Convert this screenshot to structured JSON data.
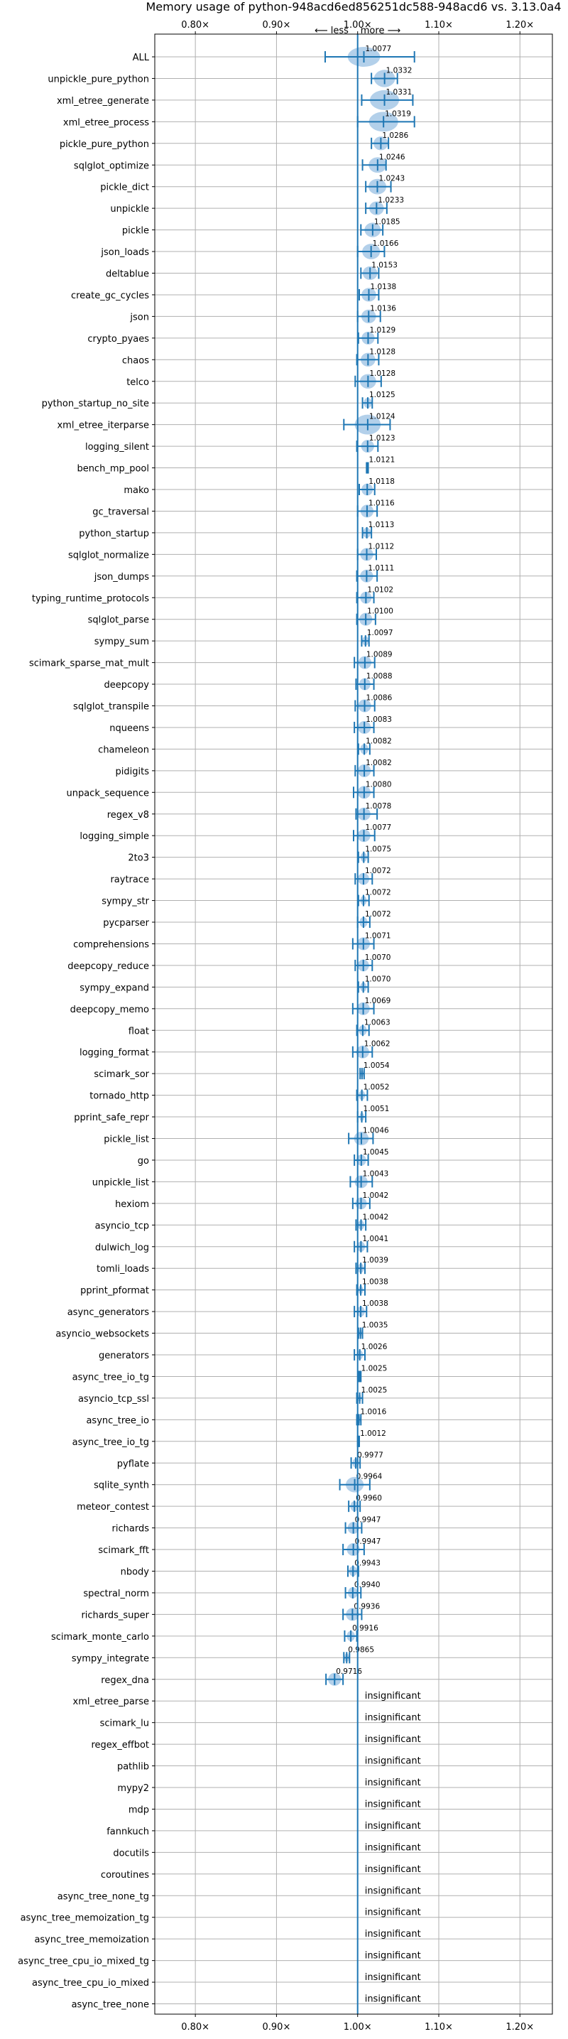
{
  "chart_data": {
    "type": "scatter",
    "title": "Memory usage of python-948acd6ed856251dc588-948acd6 vs. 3.13.0a4",
    "xlim": [
      0.75,
      1.24
    ],
    "x_ticks": [
      0.8,
      0.9,
      1.0,
      1.1,
      1.2
    ],
    "x_tick_labels": [
      "0.80×",
      "0.90×",
      "1.00×",
      "1.10×",
      "1.20×"
    ],
    "direction_labels": {
      "left": "⟵ less",
      "right": "more ⟶"
    },
    "grid": true,
    "colors": {
      "line": "#1f77b4",
      "violin": "#a6c8e6",
      "grid": "#b0b0b0"
    },
    "insignificant_label": "insignificant",
    "benchmarks": [
      {
        "name": "ALL",
        "mean": 1.0077,
        "lo": 0.96,
        "hi": 1.07,
        "spread": 0.02
      },
      {
        "name": "unpickle_pure_python",
        "mean": 1.0332,
        "lo": 1.017,
        "hi": 1.049,
        "spread": 0.013
      },
      {
        "name": "xml_etree_generate",
        "mean": 1.0331,
        "lo": 1.005,
        "hi": 1.068,
        "spread": 0.018
      },
      {
        "name": "xml_etree_process",
        "mean": 1.0319,
        "lo": 1.0,
        "hi": 1.07,
        "spread": 0.018
      },
      {
        "name": "pickle_pure_python",
        "mean": 1.0286,
        "lo": 1.017,
        "hi": 1.038,
        "spread": 0.009
      },
      {
        "name": "sqlglot_optimize",
        "mean": 1.0246,
        "lo": 1.006,
        "hi": 1.035,
        "spread": 0.011
      },
      {
        "name": "pickle_dict",
        "mean": 1.0243,
        "lo": 1.01,
        "hi": 1.041,
        "spread": 0.011
      },
      {
        "name": "unpickle",
        "mean": 1.0233,
        "lo": 1.01,
        "hi": 1.036,
        "spread": 0.009
      },
      {
        "name": "pickle",
        "mean": 1.0185,
        "lo": 1.004,
        "hi": 1.031,
        "spread": 0.01
      },
      {
        "name": "json_loads",
        "mean": 1.0166,
        "lo": 1.0,
        "hi": 1.033,
        "spread": 0.011
      },
      {
        "name": "deltablue",
        "mean": 1.0153,
        "lo": 1.004,
        "hi": 1.026,
        "spread": 0.009
      },
      {
        "name": "create_gc_cycles",
        "mean": 1.0138,
        "lo": 1.002,
        "hi": 1.026,
        "spread": 0.009
      },
      {
        "name": "json",
        "mean": 1.0136,
        "lo": 1.0,
        "hi": 1.028,
        "spread": 0.009
      },
      {
        "name": "crypto_pyaes",
        "mean": 1.0129,
        "lo": 1.001,
        "hi": 1.025,
        "spread": 0.008
      },
      {
        "name": "chaos",
        "mean": 1.0128,
        "lo": 0.999,
        "hi": 1.026,
        "spread": 0.009
      },
      {
        "name": "telco",
        "mean": 1.0128,
        "lo": 0.997,
        "hi": 1.029,
        "spread": 0.01
      },
      {
        "name": "python_startup_no_site",
        "mean": 1.0125,
        "lo": 1.006,
        "hi": 1.018,
        "spread": 0.005
      },
      {
        "name": "xml_etree_iterparse",
        "mean": 1.0124,
        "lo": 0.983,
        "hi": 1.04,
        "spread": 0.016
      },
      {
        "name": "logging_silent",
        "mean": 1.0123,
        "lo": 0.999,
        "hi": 1.025,
        "spread": 0.008
      },
      {
        "name": "bench_mp_pool",
        "mean": 1.0121,
        "lo": 1.011,
        "hi": 1.013,
        "spread": 0.001
      },
      {
        "name": "mako",
        "mean": 1.0118,
        "lo": 1.002,
        "hi": 1.021,
        "spread": 0.007
      },
      {
        "name": "gc_traversal",
        "mean": 1.0116,
        "lo": 1.0,
        "hi": 1.024,
        "spread": 0.008
      },
      {
        "name": "python_startup",
        "mean": 1.0113,
        "lo": 1.006,
        "hi": 1.017,
        "spread": 0.005
      },
      {
        "name": "sqlglot_normalize",
        "mean": 1.0112,
        "lo": 1.0,
        "hi": 1.023,
        "spread": 0.008
      },
      {
        "name": "json_dumps",
        "mean": 1.0111,
        "lo": 0.999,
        "hi": 1.024,
        "spread": 0.008
      },
      {
        "name": "typing_runtime_protocols",
        "mean": 1.0102,
        "lo": 0.999,
        "hi": 1.02,
        "spread": 0.007
      },
      {
        "name": "sqlglot_parse",
        "mean": 1.01,
        "lo": 0.999,
        "hi": 1.022,
        "spread": 0.008
      },
      {
        "name": "sympy_sum",
        "mean": 1.0097,
        "lo": 1.005,
        "hi": 1.014,
        "spread": 0.004
      },
      {
        "name": "scimark_sparse_mat_mult",
        "mean": 1.0089,
        "lo": 0.996,
        "hi": 1.021,
        "spread": 0.008
      },
      {
        "name": "deepcopy",
        "mean": 1.0088,
        "lo": 0.998,
        "hi": 1.02,
        "spread": 0.007
      },
      {
        "name": "sqlglot_transpile",
        "mean": 1.0086,
        "lo": 0.997,
        "hi": 1.021,
        "spread": 0.008
      },
      {
        "name": "nqueens",
        "mean": 1.0083,
        "lo": 0.996,
        "hi": 1.02,
        "spread": 0.008
      },
      {
        "name": "chameleon",
        "mean": 1.0082,
        "lo": 1.001,
        "hi": 1.015,
        "spread": 0.005
      },
      {
        "name": "pidigits",
        "mean": 1.0082,
        "lo": 0.997,
        "hi": 1.02,
        "spread": 0.008
      },
      {
        "name": "unpack_sequence",
        "mean": 1.008,
        "lo": 0.995,
        "hi": 1.02,
        "spread": 0.008
      },
      {
        "name": "regex_v8",
        "mean": 1.0078,
        "lo": 0.998,
        "hi": 1.024,
        "spread": 0.008
      },
      {
        "name": "logging_simple",
        "mean": 1.0077,
        "lo": 0.995,
        "hi": 1.021,
        "spread": 0.008
      },
      {
        "name": "2to3",
        "mean": 1.0075,
        "lo": 1.001,
        "hi": 1.013,
        "spread": 0.004
      },
      {
        "name": "raytrace",
        "mean": 1.0072,
        "lo": 0.997,
        "hi": 1.018,
        "spread": 0.007
      },
      {
        "name": "sympy_str",
        "mean": 1.0072,
        "lo": 1.001,
        "hi": 1.014,
        "spread": 0.004
      },
      {
        "name": "pycparser",
        "mean": 1.0072,
        "lo": 1.0,
        "hi": 1.015,
        "spread": 0.005
      },
      {
        "name": "comprehensions",
        "mean": 1.0071,
        "lo": 0.994,
        "hi": 1.02,
        "spread": 0.008
      },
      {
        "name": "deepcopy_reduce",
        "mean": 1.007,
        "lo": 0.997,
        "hi": 1.018,
        "spread": 0.007
      },
      {
        "name": "sympy_expand",
        "mean": 1.007,
        "lo": 1.001,
        "hi": 1.013,
        "spread": 0.004
      },
      {
        "name": "deepcopy_memo",
        "mean": 1.0069,
        "lo": 0.994,
        "hi": 1.02,
        "spread": 0.008
      },
      {
        "name": "float",
        "mean": 1.0063,
        "lo": 0.999,
        "hi": 1.014,
        "spread": 0.005
      },
      {
        "name": "logging_format",
        "mean": 1.0062,
        "lo": 0.994,
        "hi": 1.018,
        "spread": 0.008
      },
      {
        "name": "scimark_sor",
        "mean": 1.0054,
        "lo": 1.003,
        "hi": 1.008,
        "spread": 0.002
      },
      {
        "name": "tornado_http",
        "mean": 1.0052,
        "lo": 0.999,
        "hi": 1.012,
        "spread": 0.004
      },
      {
        "name": "pprint_safe_repr",
        "mean": 1.0051,
        "lo": 1.0,
        "hi": 1.01,
        "spread": 0.003
      },
      {
        "name": "pickle_list",
        "mean": 1.0046,
        "lo": 0.989,
        "hi": 1.019,
        "spread": 0.009
      },
      {
        "name": "go",
        "mean": 1.0045,
        "lo": 0.996,
        "hi": 1.013,
        "spread": 0.006
      },
      {
        "name": "unpickle_list",
        "mean": 1.0043,
        "lo": 0.991,
        "hi": 1.018,
        "spread": 0.008
      },
      {
        "name": "hexiom",
        "mean": 1.0042,
        "lo": 0.994,
        "hi": 1.015,
        "spread": 0.007
      },
      {
        "name": "asyncio_tcp",
        "mean": 1.0042,
        "lo": 0.998,
        "hi": 1.01,
        "spread": 0.004
      },
      {
        "name": "dulwich_log",
        "mean": 1.0041,
        "lo": 0.996,
        "hi": 1.012,
        "spread": 0.005
      },
      {
        "name": "tomli_loads",
        "mean": 1.0039,
        "lo": 0.998,
        "hi": 1.009,
        "spread": 0.004
      },
      {
        "name": "pprint_pformat",
        "mean": 1.0038,
        "lo": 0.999,
        "hi": 1.009,
        "spread": 0.003
      },
      {
        "name": "async_generators",
        "mean": 1.0038,
        "lo": 0.996,
        "hi": 1.011,
        "spread": 0.005
      },
      {
        "name": "asyncio_websockets",
        "mean": 1.0035,
        "lo": 1.001,
        "hi": 1.006,
        "spread": 0.002
      },
      {
        "name": "generators",
        "mean": 1.0026,
        "lo": 0.996,
        "hi": 1.009,
        "spread": 0.004
      },
      {
        "name": "async_tree_io_tg",
        "mean": 1.0025,
        "lo": 1.001,
        "hi": 1.004,
        "spread": 0.001
      },
      {
        "name": "asyncio_tcp_ssl",
        "mean": 1.0025,
        "lo": 0.999,
        "hi": 1.006,
        "spread": 0.002
      },
      {
        "name": "async_tree_io",
        "mean": 1.0016,
        "lo": 0.999,
        "hi": 1.004,
        "spread": 0.002
      },
      {
        "name": "async_tree_io_tg",
        "mean": 1.0012,
        "lo": 1.0,
        "hi": 1.002,
        "spread": 0.001
      },
      {
        "name": "pyflate",
        "mean": 0.9977,
        "lo": 0.992,
        "hi": 1.003,
        "spread": 0.004
      },
      {
        "name": "sqlite_synth",
        "mean": 0.9964,
        "lo": 0.978,
        "hi": 1.015,
        "spread": 0.011
      },
      {
        "name": "meteor_contest",
        "mean": 0.996,
        "lo": 0.989,
        "hi": 1.003,
        "spread": 0.005
      },
      {
        "name": "richards",
        "mean": 0.9947,
        "lo": 0.985,
        "hi": 1.005,
        "spread": 0.007
      },
      {
        "name": "scimark_fft",
        "mean": 0.9947,
        "lo": 0.982,
        "hi": 1.008,
        "spread": 0.008
      },
      {
        "name": "nbody",
        "mean": 0.9943,
        "lo": 0.988,
        "hi": 1.001,
        "spread": 0.005
      },
      {
        "name": "spectral_norm",
        "mean": 0.994,
        "lo": 0.985,
        "hi": 1.004,
        "spread": 0.006
      },
      {
        "name": "richards_super",
        "mean": 0.9936,
        "lo": 0.982,
        "hi": 1.005,
        "spread": 0.008
      },
      {
        "name": "scimark_monte_carlo",
        "mean": 0.9916,
        "lo": 0.984,
        "hi": 0.999,
        "spread": 0.005
      },
      {
        "name": "sympy_integrate",
        "mean": 0.9865,
        "lo": 0.983,
        "hi": 0.99,
        "spread": 0.003
      },
      {
        "name": "regex_dna",
        "mean": 0.9716,
        "lo": 0.961,
        "hi": 0.982,
        "spread": 0.008
      }
    ],
    "insignificant": [
      "xml_etree_parse",
      "scimark_lu",
      "regex_effbot",
      "pathlib",
      "mypy2",
      "mdp",
      "fannkuch",
      "docutils",
      "coroutines",
      "async_tree_none_tg",
      "async_tree_memoization_tg",
      "async_tree_memoization",
      "async_tree_cpu_io_mixed_tg",
      "async_tree_cpu_io_mixed",
      "async_tree_none"
    ]
  }
}
